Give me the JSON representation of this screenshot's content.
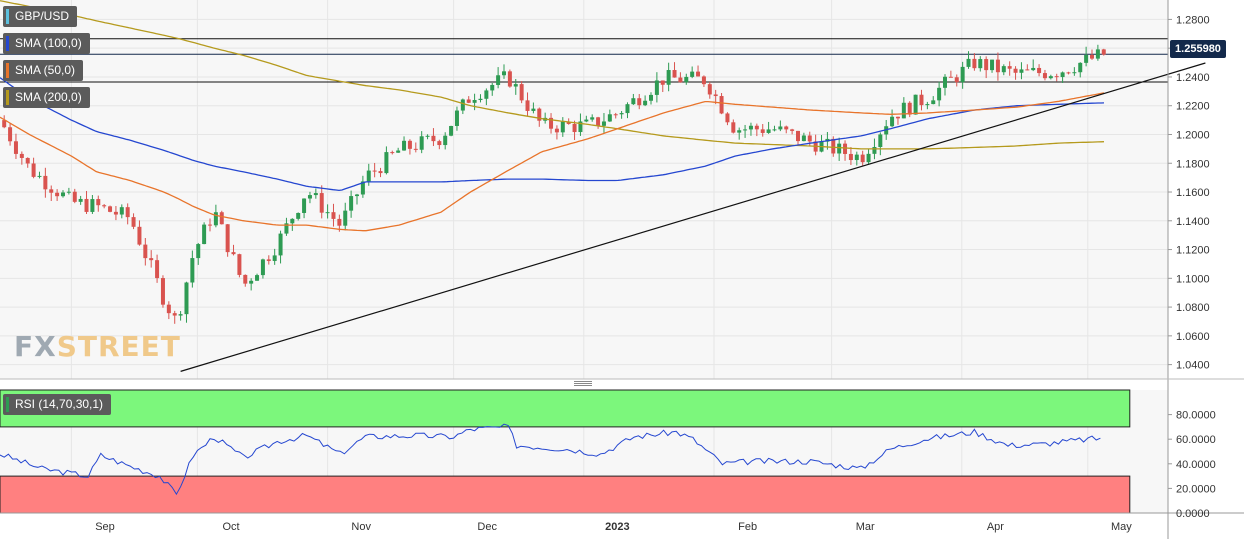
{
  "instrument_label": "GBP/USD",
  "indicators": {
    "sma100": {
      "label": "SMA (100,0)",
      "color": "#2547d0"
    },
    "sma50": {
      "label": "SMA (50,0)",
      "color": "#e8742b"
    },
    "sma200": {
      "label": "SMA (200,0)",
      "color": "#b59a1d"
    },
    "rsi": {
      "label": "RSI (14,70,30,1)",
      "color": "#2547d0"
    }
  },
  "current_price_label": "1.255980",
  "watermark": {
    "part1": "FX",
    "part2": "STREET"
  },
  "colors": {
    "up": "#2e9b53",
    "down": "#d9534f",
    "overbought": "#7cf77c",
    "oversold": "#ff8080",
    "price_line": "#13294b"
  },
  "chart_data": [
    {
      "type": "candlestick",
      "title": "",
      "x_labels": [
        "Sep",
        "Oct",
        "Nov",
        "Dec",
        "2023",
        "Feb",
        "Mar",
        "Apr",
        "May"
      ],
      "y_ticks": [
        "1.2800",
        "1.2600",
        "1.2400",
        "1.2200",
        "1.2000",
        "1.1800",
        "1.1600",
        "1.1400",
        "1.1200",
        "1.1000",
        "1.0800",
        "1.0600",
        "1.0400"
      ],
      "ylim": [
        1.03,
        1.2935
      ],
      "grid": true,
      "horizontal_levels": [
        1.2666,
        1.2558,
        1.2365
      ],
      "trendline": {
        "from": {
          "date": "2022-09-27",
          "value": 1.0353
        },
        "to": {
          "date": "2023-05-29",
          "value": 1.2497
        }
      },
      "anchors": [
        {
          "date": "2022-08-15",
          "close": 1.21,
          "sma50": 1.212,
          "sma100": 1.2395,
          "sma200": 1.293
        },
        {
          "date": "2022-08-22",
          "close": 1.176,
          "sma50": 1.2,
          "sma100": 1.225,
          "sma200": 1.289
        },
        {
          "date": "2022-09-01",
          "close": 1.153,
          "sma50": 1.185,
          "sma100": 1.21,
          "sma200": 1.283
        },
        {
          "date": "2022-09-07",
          "close": 1.15,
          "sma50": 1.174,
          "sma100": 1.202,
          "sma200": 1.279
        },
        {
          "date": "2022-09-15",
          "close": 1.142,
          "sma50": 1.168,
          "sma100": 1.196,
          "sma200": 1.274
        },
        {
          "date": "2022-09-23",
          "close": 1.086,
          "sma50": 1.16,
          "sma100": 1.189,
          "sma200": 1.269
        },
        {
          "date": "2022-09-26",
          "close": 1.069,
          "sma50": 1.156,
          "sma100": 1.186,
          "sma200": 1.267
        },
        {
          "date": "2022-09-30",
          "close": 1.117,
          "sma50": 1.15,
          "sma100": 1.182,
          "sma200": 1.264
        },
        {
          "date": "2022-10-05",
          "close": 1.147,
          "sma50": 1.144,
          "sma100": 1.178,
          "sma200": 1.26
        },
        {
          "date": "2022-10-12",
          "close": 1.095,
          "sma50": 1.14,
          "sma100": 1.174,
          "sma200": 1.255
        },
        {
          "date": "2022-10-20",
          "close": 1.124,
          "sma50": 1.137,
          "sma100": 1.169,
          "sma200": 1.248
        },
        {
          "date": "2022-10-27",
          "close": 1.161,
          "sma50": 1.137,
          "sma100": 1.164,
          "sma200": 1.241
        },
        {
          "date": "2022-11-04",
          "close": 1.137,
          "sma50": 1.134,
          "sma100": 1.161,
          "sma200": 1.237
        },
        {
          "date": "2022-11-10",
          "close": 1.17,
          "sma50": 1.133,
          "sma100": 1.167,
          "sma200": 1.234
        },
        {
          "date": "2022-11-18",
          "close": 1.189,
          "sma50": 1.137,
          "sma100": 1.167,
          "sma200": 1.231
        },
        {
          "date": "2022-11-28",
          "close": 1.198,
          "sma50": 1.146,
          "sma100": 1.167,
          "sma200": 1.226
        },
        {
          "date": "2022-12-05",
          "close": 1.227,
          "sma50": 1.16,
          "sma100": 1.168,
          "sma200": 1.22
        },
        {
          "date": "2022-12-14",
          "close": 1.24,
          "sma50": 1.175,
          "sma100": 1.169,
          "sma200": 1.215
        },
        {
          "date": "2022-12-22",
          "close": 1.206,
          "sma50": 1.188,
          "sma100": 1.169,
          "sma200": 1.211
        },
        {
          "date": "2023-01-02",
          "close": 1.206,
          "sma50": 1.197,
          "sma100": 1.168,
          "sma200": 1.207
        },
        {
          "date": "2023-01-09",
          "close": 1.215,
          "sma50": 1.204,
          "sma100": 1.168,
          "sma200": 1.204
        },
        {
          "date": "2023-01-20",
          "close": 1.239,
          "sma50": 1.215,
          "sma100": 1.172,
          "sma200": 1.199
        },
        {
          "date": "2023-01-30",
          "close": 1.238,
          "sma50": 1.223,
          "sma100": 1.178,
          "sma200": 1.196
        },
        {
          "date": "2023-02-06",
          "close": 1.204,
          "sma50": 1.221,
          "sma100": 1.185,
          "sma200": 1.194
        },
        {
          "date": "2023-02-15",
          "close": 1.204,
          "sma50": 1.219,
          "sma100": 1.19,
          "sma200": 1.193
        },
        {
          "date": "2023-02-24",
          "close": 1.195,
          "sma50": 1.217,
          "sma100": 1.194,
          "sma200": 1.192
        },
        {
          "date": "2023-03-08",
          "close": 1.184,
          "sma50": 1.215,
          "sma100": 1.199,
          "sma200": 1.19
        },
        {
          "date": "2023-03-15",
          "close": 1.213,
          "sma50": 1.214,
          "sma100": 1.204,
          "sma200": 1.19
        },
        {
          "date": "2023-03-24",
          "close": 1.226,
          "sma50": 1.215,
          "sma100": 1.211,
          "sma200": 1.19
        },
        {
          "date": "2023-04-04",
          "close": 1.25,
          "sma50": 1.217,
          "sma100": 1.217,
          "sma200": 1.191
        },
        {
          "date": "2023-04-14",
          "close": 1.242,
          "sma50": 1.219,
          "sma100": 1.22,
          "sma200": 1.192
        },
        {
          "date": "2023-04-24",
          "close": 1.244,
          "sma50": 1.223,
          "sma100": 1.221,
          "sma200": 1.194
        },
        {
          "date": "2023-05-05",
          "close": 1.256,
          "sma50": 1.229,
          "sma100": 1.222,
          "sma200": 1.195
        }
      ]
    },
    {
      "type": "line",
      "title": "",
      "y_ticks": [
        "80.0000",
        "60.0000",
        "40.0000",
        "20.0000",
        "0.0000"
      ],
      "ylim": [
        0,
        100
      ],
      "levels": {
        "overbought": 70,
        "oversold": 30
      },
      "series": [
        {
          "values": [
            {
              "date": "2022-08-15",
              "rsi": 48
            },
            {
              "date": "2022-08-25",
              "rsi": 36
            },
            {
              "date": "2022-09-05",
              "rsi": 30
            },
            {
              "date": "2022-09-08",
              "rsi": 47
            },
            {
              "date": "2022-09-15",
              "rsi": 38
            },
            {
              "date": "2022-09-22",
              "rsi": 30
            },
            {
              "date": "2022-09-26",
              "rsi": 15
            },
            {
              "date": "2022-09-30",
              "rsi": 47
            },
            {
              "date": "2022-10-05",
              "rsi": 62
            },
            {
              "date": "2022-10-12",
              "rsi": 45
            },
            {
              "date": "2022-10-20",
              "rsi": 58
            },
            {
              "date": "2022-10-27",
              "rsi": 63
            },
            {
              "date": "2022-11-04",
              "rsi": 48
            },
            {
              "date": "2022-11-10",
              "rsi": 62
            },
            {
              "date": "2022-11-22",
              "rsi": 63
            },
            {
              "date": "2022-12-01",
              "rsi": 62
            },
            {
              "date": "2022-12-05",
              "rsi": 68
            },
            {
              "date": "2022-12-14",
              "rsi": 70
            },
            {
              "date": "2022-12-16",
              "rsi": 55
            },
            {
              "date": "2022-12-28",
              "rsi": 52
            },
            {
              "date": "2023-01-05",
              "rsi": 48
            },
            {
              "date": "2023-01-13",
              "rsi": 62
            },
            {
              "date": "2023-01-23",
              "rsi": 66
            },
            {
              "date": "2023-01-27",
              "rsi": 60
            },
            {
              "date": "2023-02-03",
              "rsi": 40
            },
            {
              "date": "2023-02-10",
              "rsi": 42
            },
            {
              "date": "2023-02-24",
              "rsi": 42
            },
            {
              "date": "2023-03-08",
              "rsi": 36
            },
            {
              "date": "2023-03-15",
              "rsi": 52
            },
            {
              "date": "2023-03-23",
              "rsi": 60
            },
            {
              "date": "2023-04-04",
              "rsi": 66
            },
            {
              "date": "2023-04-12",
              "rsi": 55
            },
            {
              "date": "2023-04-20",
              "rsi": 56
            },
            {
              "date": "2023-05-01",
              "rsi": 60
            },
            {
              "date": "2023-05-05",
              "rsi": 61
            }
          ]
        }
      ]
    }
  ]
}
